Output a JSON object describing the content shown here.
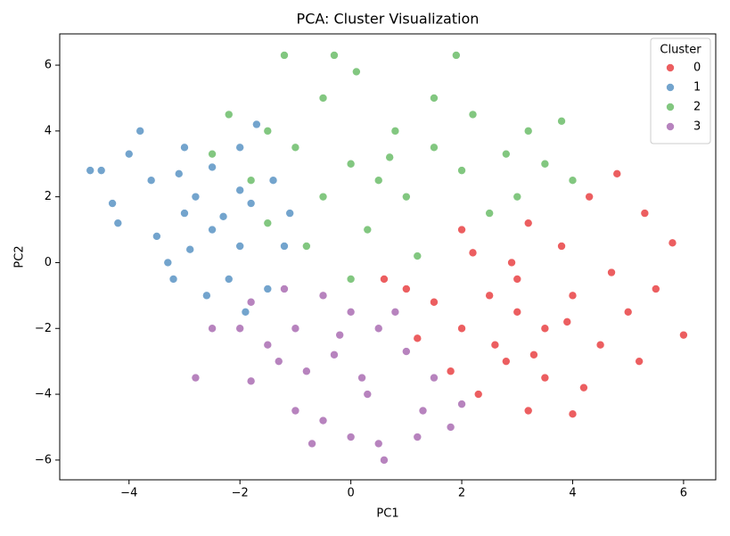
{
  "chart_data": {
    "type": "scatter",
    "title": "PCA: Cluster Visualization",
    "x_label": "PC1",
    "y_label": "PC2",
    "legend_title": "Cluster",
    "legend": "upper right",
    "grid": false,
    "xlim": [
      -5.25,
      6.58
    ],
    "ylim": [
      -6.6,
      6.95
    ],
    "xticks": [
      {
        "value": -4,
        "label": "−4"
      },
      {
        "value": -2,
        "label": "−2"
      },
      0,
      2,
      4,
      6
    ],
    "yticks": [
      {
        "value": -6,
        "label": "−6"
      },
      {
        "value": -4,
        "label": "−4"
      },
      {
        "value": -2,
        "label": "−2"
      },
      0,
      2,
      4,
      6
    ],
    "series": [
      {
        "name": "0",
        "color": "#e41a1c",
        "x": [
          3,
          2.5,
          3.5,
          4,
          2,
          3,
          4.5,
          2.2,
          3.8,
          1.5,
          1,
          2.8,
          3.5,
          4.2,
          5,
          5.5,
          6,
          5.8,
          4.8,
          4.3,
          3.2,
          2.6,
          1.8,
          3.2,
          4,
          5.2,
          0.6,
          1.2,
          2.3,
          4.7,
          3.3,
          2,
          5.3,
          3.9,
          2.9
        ],
        "values": [
          -1.5,
          -1,
          -2,
          -1,
          -2,
          -0.5,
          -2.5,
          0.3,
          0.5,
          -1.2,
          -0.8,
          -3,
          -3.5,
          -3.8,
          -1.5,
          -0.8,
          -2.2,
          0.6,
          2.7,
          2,
          1.2,
          -2.5,
          -3.3,
          -4.5,
          -4.6,
          -3,
          -0.5,
          -2.3,
          -4,
          -0.3,
          -2.8,
          1,
          1.5,
          -1.8,
          0
        ]
      },
      {
        "name": "1",
        "color": "#377eb8",
        "x": [
          -2.5,
          -3,
          -2,
          -3.5,
          -2.8,
          -1.8,
          -4.7,
          -4.5,
          -4,
          -3.8,
          -3,
          -2.5,
          -2,
          -1.7,
          -2.2,
          -3.2,
          -2.6,
          -1.5,
          -1.2,
          -4.2,
          -3.6,
          -2.3,
          -3.3,
          -1.9,
          -4.3,
          -1.4,
          -2.9,
          -3.1,
          -2,
          -1.1
        ],
        "values": [
          1,
          1.5,
          0.5,
          0.8,
          2,
          1.8,
          2.8,
          2.8,
          3.3,
          4,
          3.5,
          2.9,
          3.5,
          4.2,
          -0.5,
          -0.5,
          -1,
          -0.8,
          0.5,
          1.2,
          2.5,
          1.4,
          0,
          -1.5,
          1.8,
          2.5,
          0.4,
          2.7,
          2.2,
          1.5
        ]
      },
      {
        "name": "2",
        "color": "#4daf4a",
        "x": [
          0.5,
          0,
          1,
          1.5,
          -0.5,
          -1,
          0.8,
          2,
          2.5,
          3,
          3.5,
          4,
          -1.5,
          -1.2,
          -0.3,
          0.1,
          1.9,
          -2.2,
          -2.5,
          -1.8,
          0.3,
          1.2,
          -0.8,
          0,
          2.2,
          3.2,
          1.5,
          -0.5,
          0.7,
          2.8,
          3.8,
          -1.5
        ],
        "values": [
          2.5,
          3,
          2,
          3.5,
          2,
          3.5,
          4,
          2.8,
          1.5,
          2,
          3,
          2.5,
          4,
          6.3,
          6.3,
          5.8,
          6.3,
          4.5,
          3.3,
          2.5,
          1,
          0.2,
          0.5,
          -0.5,
          4.5,
          4,
          5,
          5,
          3.2,
          3.3,
          4.3,
          1.2
        ]
      },
      {
        "name": "3",
        "color": "#984ea3",
        "x": [
          -0.3,
          -1,
          0.2,
          -0.8,
          0.5,
          -1.5,
          -2,
          -2.5,
          -2.8,
          -1.8,
          -1,
          -0.5,
          0,
          0.5,
          0.6,
          1.2,
          1.8,
          2,
          1.5,
          1,
          0,
          -0.5,
          -1.2,
          0.8,
          -1.8,
          0.3,
          -0.2,
          1.3,
          -1.3,
          -0.7
        ],
        "values": [
          -2.8,
          -2,
          -3.5,
          -3.3,
          -2,
          -2.5,
          -2,
          -2,
          -3.5,
          -3.6,
          -4.5,
          -4.8,
          -5.3,
          -5.5,
          -6,
          -5.3,
          -5,
          -4.3,
          -3.5,
          -2.7,
          -1.5,
          -1,
          -0.8,
          -1.5,
          -1.2,
          -4,
          -2.2,
          -4.5,
          -3,
          -5.5
        ]
      }
    ]
  }
}
